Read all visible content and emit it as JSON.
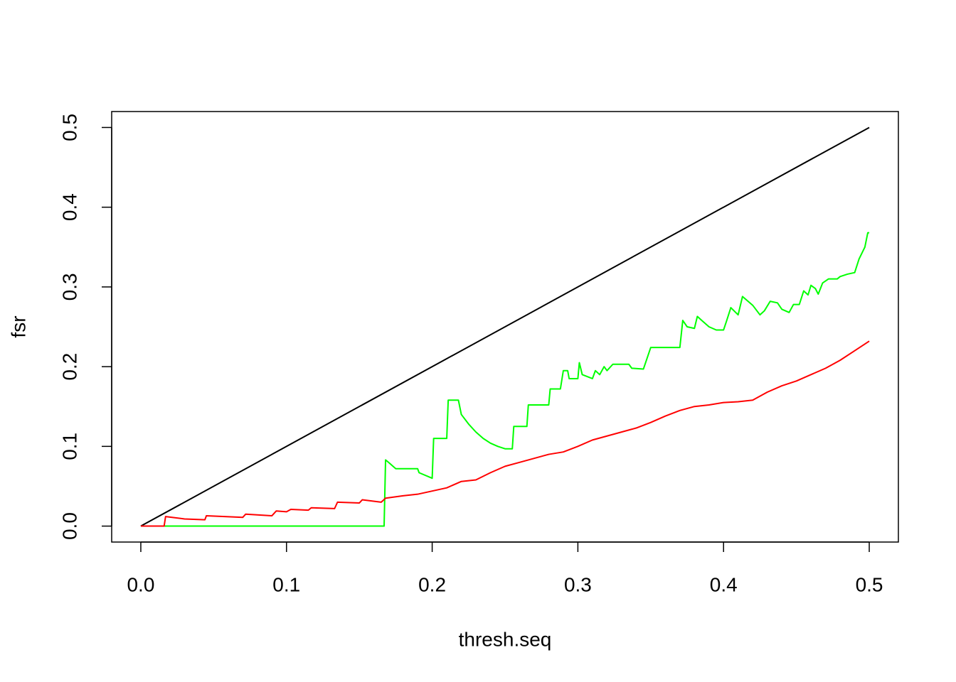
{
  "chart_data": {
    "type": "line",
    "x_label": "thresh.seq",
    "y_label": "fsr",
    "xlim": [
      -0.02,
      0.52
    ],
    "ylim": [
      -0.02,
      0.52
    ],
    "xticks": [
      {
        "value": 0,
        "label": "0.0"
      },
      0.1,
      0.2,
      0.3,
      0.4,
      0.5
    ],
    "yticks": [
      {
        "value": 0,
        "label": "0.0"
      },
      0.1,
      0.2,
      0.3,
      0.4,
      0.5
    ],
    "grid": false,
    "series": [
      {
        "color": "#000000",
        "x": [
          0,
          0.5
        ],
        "values": [
          0,
          0.5
        ]
      },
      {
        "color": "#00ff00",
        "x": [
          0,
          0.167,
          0.168,
          0.17,
          0.175,
          0.19,
          0.191,
          0.2,
          0.201,
          0.21,
          0.211,
          0.218,
          0.22,
          0.225,
          0.23,
          0.235,
          0.24,
          0.245,
          0.25,
          0.255,
          0.256,
          0.265,
          0.266,
          0.28,
          0.281,
          0.288,
          0.29,
          0.293,
          0.294,
          0.3,
          0.301,
          0.303,
          0.31,
          0.312,
          0.315,
          0.318,
          0.32,
          0.324,
          0.335,
          0.337,
          0.345,
          0.35,
          0.37,
          0.372,
          0.375,
          0.38,
          0.382,
          0.385,
          0.39,
          0.395,
          0.4,
          0.402,
          0.405,
          0.41,
          0.413,
          0.42,
          0.425,
          0.428,
          0.432,
          0.437,
          0.44,
          0.445,
          0.448,
          0.452,
          0.455,
          0.458,
          0.46,
          0.463,
          0.465,
          0.468,
          0.472,
          0.478,
          0.48,
          0.485,
          0.49,
          0.493,
          0.497,
          0.499,
          0.5
        ],
        "values": [
          0,
          0,
          0.083,
          0.08,
          0.072,
          0.072,
          0.067,
          0.06,
          0.11,
          0.11,
          0.158,
          0.158,
          0.14,
          0.128,
          0.118,
          0.11,
          0.104,
          0.1,
          0.097,
          0.097,
          0.125,
          0.125,
          0.152,
          0.152,
          0.172,
          0.172,
          0.195,
          0.195,
          0.185,
          0.185,
          0.205,
          0.19,
          0.185,
          0.195,
          0.19,
          0.2,
          0.195,
          0.203,
          0.203,
          0.198,
          0.197,
          0.224,
          0.224,
          0.258,
          0.25,
          0.248,
          0.263,
          0.258,
          0.25,
          0.246,
          0.246,
          0.257,
          0.274,
          0.265,
          0.288,
          0.277,
          0.265,
          0.27,
          0.282,
          0.28,
          0.272,
          0.268,
          0.278,
          0.278,
          0.295,
          0.29,
          0.302,
          0.298,
          0.291,
          0.305,
          0.31,
          0.31,
          0.313,
          0.316,
          0.318,
          0.335,
          0.35,
          0.368,
          0.368
        ]
      },
      {
        "color": "#ff0000",
        "x": [
          0,
          0.016,
          0.017,
          0.03,
          0.044,
          0.045,
          0.07,
          0.072,
          0.09,
          0.093,
          0.1,
          0.103,
          0.115,
          0.117,
          0.133,
          0.135,
          0.15,
          0.152,
          0.165,
          0.168,
          0.18,
          0.19,
          0.2,
          0.21,
          0.22,
          0.23,
          0.24,
          0.25,
          0.26,
          0.27,
          0.28,
          0.29,
          0.3,
          0.31,
          0.32,
          0.33,
          0.34,
          0.35,
          0.36,
          0.37,
          0.38,
          0.39,
          0.4,
          0.41,
          0.42,
          0.43,
          0.44,
          0.45,
          0.46,
          0.47,
          0.48,
          0.49,
          0.5
        ],
        "values": [
          0,
          0,
          0.012,
          0.009,
          0.008,
          0.013,
          0.011,
          0.015,
          0.013,
          0.019,
          0.018,
          0.021,
          0.02,
          0.023,
          0.022,
          0.03,
          0.029,
          0.033,
          0.03,
          0.035,
          0.038,
          0.04,
          0.044,
          0.048,
          0.056,
          0.058,
          0.067,
          0.075,
          0.08,
          0.085,
          0.09,
          0.093,
          0.1,
          0.108,
          0.113,
          0.118,
          0.123,
          0.13,
          0.138,
          0.145,
          0.15,
          0.152,
          0.155,
          0.156,
          0.158,
          0.168,
          0.176,
          0.182,
          0.19,
          0.198,
          0.208,
          0.22,
          0.232
        ]
      }
    ]
  }
}
